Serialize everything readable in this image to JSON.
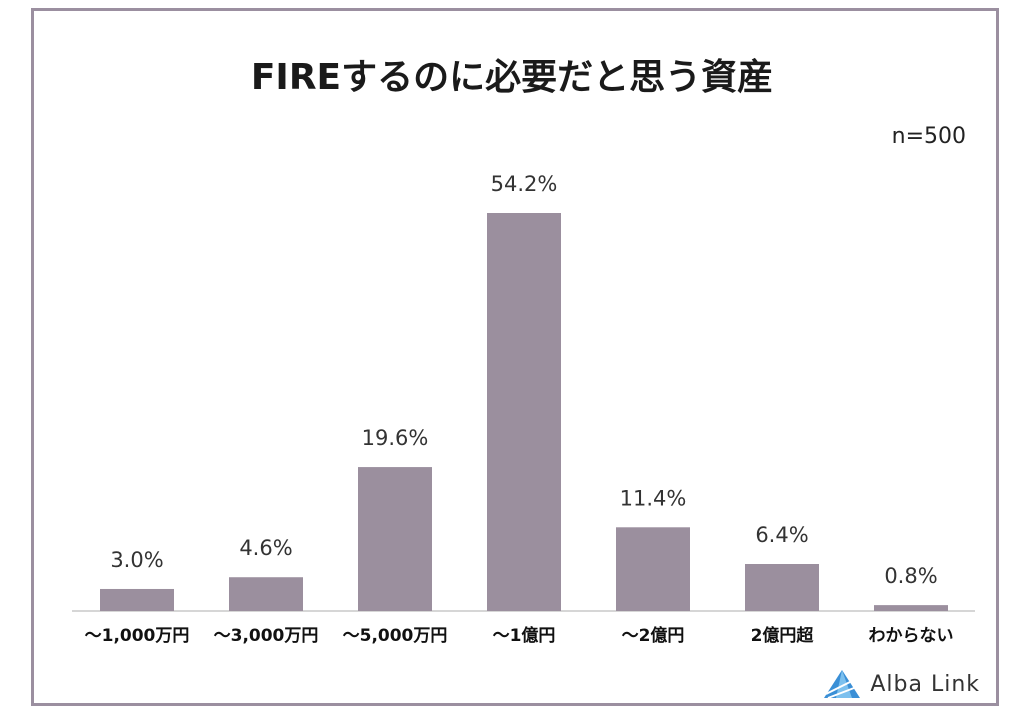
{
  "chart_data": {
    "type": "bar",
    "title": "FIREするのに必要だと思う資産",
    "sample_size": "n=500",
    "categories": [
      "～1,000万円",
      "～3,000万円",
      "～5,000万円",
      "～1億円",
      "～2億円",
      "2億円超",
      "わからない"
    ],
    "values": [
      3.0,
      4.6,
      19.6,
      54.2,
      11.4,
      6.4,
      0.8
    ],
    "value_labels": [
      "3.0%",
      "4.6%",
      "19.6%",
      "54.2%",
      "11.4%",
      "6.4%",
      "0.8%"
    ],
    "ylim": [
      0,
      60
    ],
    "grid": false,
    "bar_color": "#9b8f9e",
    "frame_color": "#9b8fa0"
  },
  "brand": {
    "name": "Alba Link",
    "icon": "alba-link-logo-icon",
    "icon_color": "#3a8fd6"
  }
}
